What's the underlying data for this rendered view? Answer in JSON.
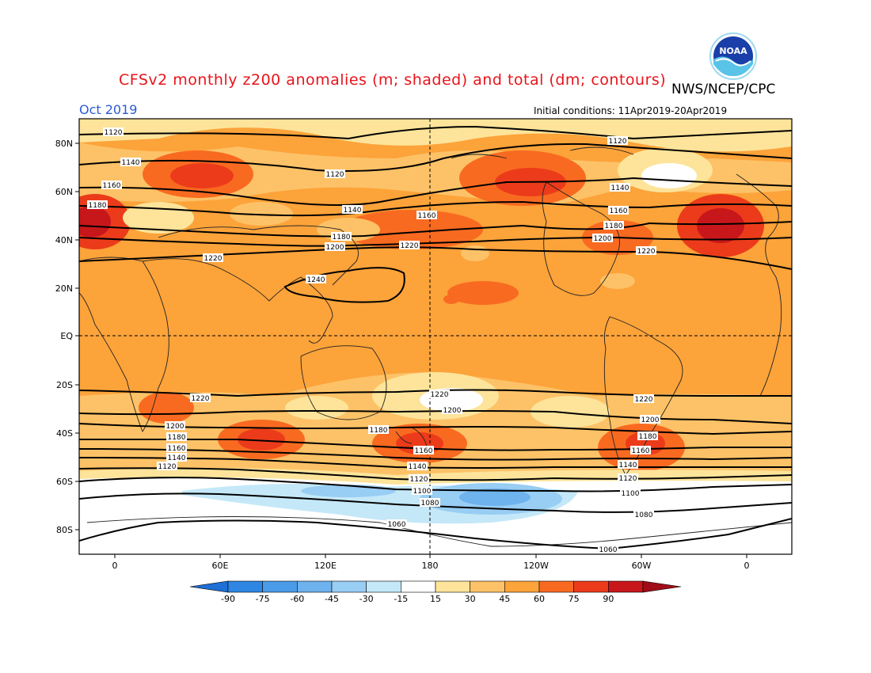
{
  "header": {
    "title": "CFSv2 monthly z200 anomalies (m; shaded) and total (dm; contours)",
    "agency": "NWS/NCEP/CPC",
    "month": "Oct 2019",
    "initial_conditions": "Initial conditions: 11Apr2019-20Apr2019"
  },
  "logo": {
    "icon": "noaa-logo-icon",
    "text": "NOAA"
  },
  "axes": {
    "lat_ticks": [
      "80N",
      "60N",
      "40N",
      "20N",
      "EQ",
      "20S",
      "40S",
      "60S",
      "80S"
    ],
    "lon_ticks": [
      "0",
      "60E",
      "120E",
      "180",
      "120W",
      "60W",
      "0"
    ]
  },
  "colorbar": {
    "labels": [
      "-90",
      "-75",
      "-60",
      "-45",
      "-30",
      "-15",
      "15",
      "30",
      "45",
      "60",
      "75",
      "90"
    ],
    "colors": [
      "#1e6fd6",
      "#2f86e3",
      "#4a9be8",
      "#6eb2ee",
      "#98cdf4",
      "#c4e8f7",
      "#ffffff",
      "#fde49a",
      "#fdc267",
      "#fca33a",
      "#f96a21",
      "#ec3b1a",
      "#c8171b",
      "#a00d18"
    ]
  },
  "contour_labels": {
    "north": [
      "1120",
      "1140",
      "1160",
      "1180",
      "1120",
      "1140",
      "1180",
      "1200",
      "1160",
      "1220",
      "1240",
      "1220",
      "1120",
      "1140",
      "1160",
      "1180",
      "1200",
      "1220"
    ],
    "south": [
      "1220",
      "1200",
      "1180",
      "1160",
      "1140",
      "1120",
      "1180",
      "1220",
      "1200",
      "1160",
      "1140",
      "1120",
      "1100",
      "1080",
      "1060",
      "1220",
      "1200",
      "1180",
      "1160",
      "1140",
      "1120",
      "1100",
      "1080",
      "1060"
    ]
  }
}
